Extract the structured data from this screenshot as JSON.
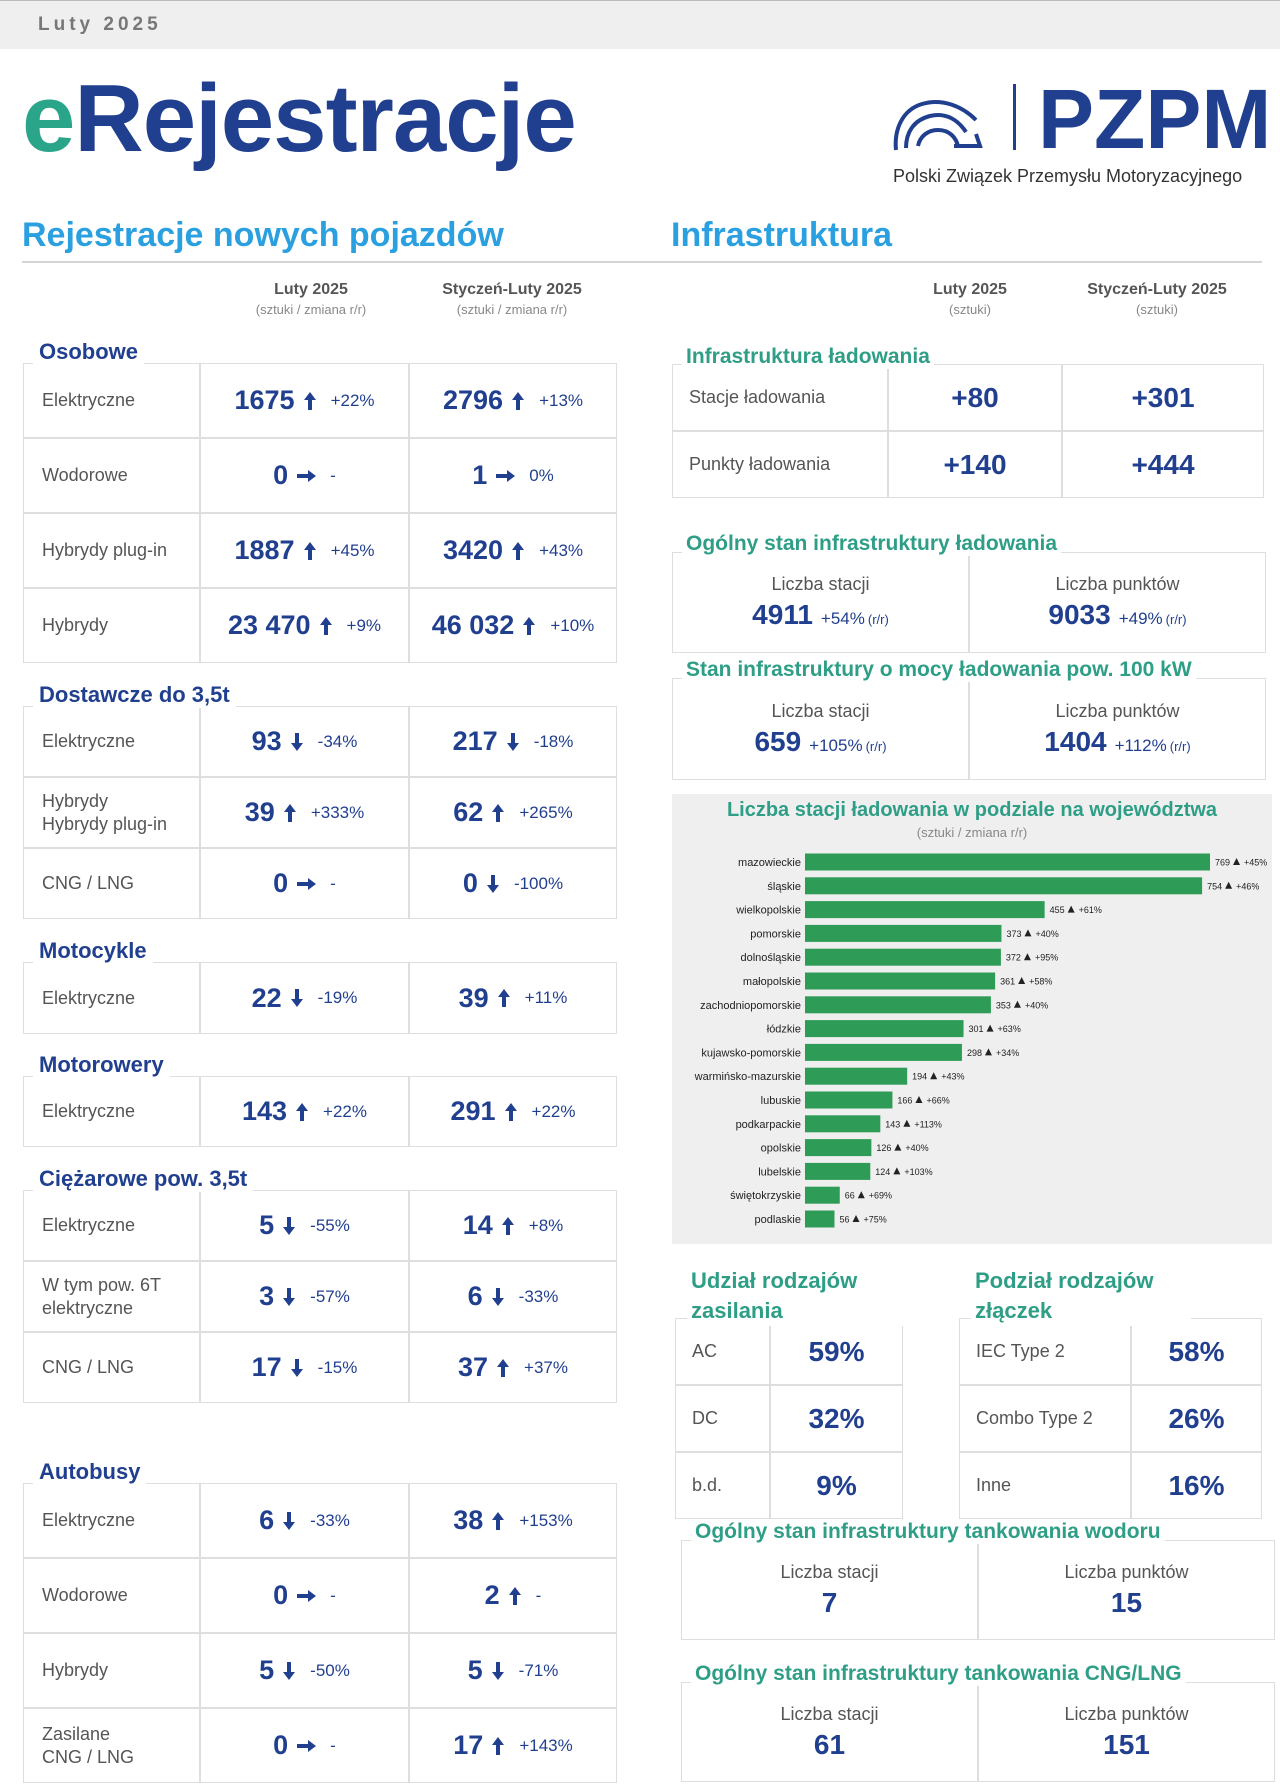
{
  "header": {
    "date": "Luty 2025",
    "title_e": "e",
    "title_rest": "Rejestracje",
    "logo_name": "PZPM",
    "logo_subtitle": "Polski Związek Przemysłu Motoryzacyjnego"
  },
  "registrations": {
    "title": "Rejestracje nowych pojazdów",
    "columns": [
      {
        "name": "Luty 2025",
        "unit": "(sztuki / zmiana r/r)"
      },
      {
        "name": "Styczeń-Luty 2025",
        "unit": "(sztuki / zmiana r/r)"
      }
    ],
    "groups": [
      {
        "name": "Osobowe",
        "rows": [
          {
            "label": [
              "Elektryczne"
            ],
            "cells": [
              {
                "value": "1675",
                "trend": "up",
                "change": "+22%"
              },
              {
                "value": "2796",
                "trend": "up",
                "change": "+13%"
              }
            ]
          },
          {
            "label": [
              "Wodorowe"
            ],
            "cells": [
              {
                "value": "0",
                "trend": "flat",
                "change": "-"
              },
              {
                "value": "1",
                "trend": "flat",
                "change": "0%"
              }
            ]
          },
          {
            "label": [
              "Hybrydy plug-in"
            ],
            "cells": [
              {
                "value": "1887",
                "trend": "up",
                "change": "+45%"
              },
              {
                "value": "3420",
                "trend": "up",
                "change": "+43%"
              }
            ]
          },
          {
            "label": [
              "Hybrydy"
            ],
            "cells": [
              {
                "value": "23 470",
                "trend": "up",
                "change": "+9%"
              },
              {
                "value": "46 032",
                "trend": "up",
                "change": "+10%"
              }
            ]
          }
        ]
      },
      {
        "name": "Dostawcze do 3,5t",
        "rows": [
          {
            "label": [
              "Elektryczne"
            ],
            "cells": [
              {
                "value": "93",
                "trend": "down",
                "change": "-34%"
              },
              {
                "value": "217",
                "trend": "down",
                "change": "-18%"
              }
            ]
          },
          {
            "label": [
              "Hybrydy",
              "Hybrydy plug-in"
            ],
            "cells": [
              {
                "value": "39",
                "trend": "up",
                "change": "+333%"
              },
              {
                "value": "62",
                "trend": "up",
                "change": "+265%"
              }
            ]
          },
          {
            "label": [
              "CNG / LNG"
            ],
            "cells": [
              {
                "value": "0",
                "trend": "flat",
                "change": "-"
              },
              {
                "value": "0",
                "trend": "down",
                "change": "-100%"
              }
            ]
          }
        ]
      },
      {
        "name": "Motocykle",
        "rows": [
          {
            "label": [
              "Elektryczne"
            ],
            "cells": [
              {
                "value": "22",
                "trend": "down",
                "change": "-19%"
              },
              {
                "value": "39",
                "trend": "up",
                "change": "+11%"
              }
            ]
          }
        ]
      },
      {
        "name": "Motorowery",
        "rows": [
          {
            "label": [
              "Elektryczne"
            ],
            "cells": [
              {
                "value": "143",
                "trend": "up",
                "change": "+22%"
              },
              {
                "value": "291",
                "trend": "up",
                "change": "+22%"
              }
            ]
          }
        ]
      },
      {
        "name": "Ciężarowe pow. 3,5t",
        "rows": [
          {
            "label": [
              "Elektryczne"
            ],
            "cells": [
              {
                "value": "5",
                "trend": "down",
                "change": "-55%"
              },
              {
                "value": "14",
                "trend": "up",
                "change": "+8%"
              }
            ]
          },
          {
            "label": [
              "W tym pow. 6T",
              "elektryczne"
            ],
            "cells": [
              {
                "value": "3",
                "trend": "down",
                "change": "-57%"
              },
              {
                "value": "6",
                "trend": "down",
                "change": "-33%"
              }
            ]
          },
          {
            "label": [
              "CNG / LNG"
            ],
            "cells": [
              {
                "value": "17",
                "trend": "down",
                "change": "-15%"
              },
              {
                "value": "37",
                "trend": "up",
                "change": "+37%"
              }
            ]
          }
        ]
      },
      {
        "name": "Autobusy",
        "rows": [
          {
            "label": [
              "Elektryczne"
            ],
            "cells": [
              {
                "value": "6",
                "trend": "down",
                "change": "-33%"
              },
              {
                "value": "38",
                "trend": "up",
                "change": "+153%"
              }
            ]
          },
          {
            "label": [
              "Wodorowe"
            ],
            "cells": [
              {
                "value": "0",
                "trend": "flat",
                "change": "-"
              },
              {
                "value": "2",
                "trend": "up",
                "change": "-"
              }
            ]
          },
          {
            "label": [
              "Hybrydy"
            ],
            "cells": [
              {
                "value": "5",
                "trend": "down",
                "change": "-50%"
              },
              {
                "value": "5",
                "trend": "down",
                "change": "-71%"
              }
            ]
          },
          {
            "label": [
              "Zasilane",
              "CNG / LNG"
            ],
            "cells": [
              {
                "value": "0",
                "trend": "flat",
                "change": "-"
              },
              {
                "value": "17",
                "trend": "up",
                "change": "+143%"
              }
            ]
          }
        ]
      }
    ]
  },
  "infrastructure": {
    "title": "Infrastruktura",
    "columns": [
      {
        "name": "Luty 2025",
        "unit": "(sztuki)"
      },
      {
        "name": "Styczeń-Luty 2025",
        "unit": "(sztuki)"
      }
    ],
    "charging": {
      "title": "Infrastruktura  ładowania",
      "rows": [
        {
          "label": "Stacje ładowania",
          "values": [
            "+80",
            "+301"
          ]
        },
        {
          "label": "Punkty ładowania",
          "values": [
            "+140",
            "+444"
          ]
        }
      ]
    },
    "charging_total": {
      "title": "Ogólny stan infrastruktury ładowania",
      "cells": [
        {
          "label": "Liczba stacji",
          "value": "4911",
          "change": "+54%",
          "note": "(r/r)"
        },
        {
          "label": "Liczba punktów",
          "value": "9033",
          "change": "+49%",
          "note": "(r/r)"
        }
      ]
    },
    "charging_100kw": {
      "title": "Stan infrastruktury o mocy ładowania pow. 100 kW",
      "cells": [
        {
          "label": "Liczba stacji",
          "value": "659",
          "change": "+105%",
          "note": "(r/r)"
        },
        {
          "label": "Liczba punktów",
          "value": "1404",
          "change": "+112%",
          "note": "(r/r)"
        }
      ]
    },
    "power_share": {
      "title": "Udział rodzajów zasilania",
      "rows": [
        {
          "label": "AC",
          "value": "59%"
        },
        {
          "label": "DC",
          "value": "32%"
        },
        {
          "label": "b.d.",
          "value": "9%"
        }
      ]
    },
    "connectors": {
      "title": "Podział rodzajów złączek",
      "rows": [
        {
          "label": "IEC Type 2",
          "value": "58%"
        },
        {
          "label": "Combo Type 2",
          "value": "26%"
        },
        {
          "label": "Inne",
          "value": "16%"
        }
      ]
    },
    "hydrogen": {
      "title": "Ogólny stan infrastruktury tankowania wodoru",
      "cells": [
        {
          "label": "Liczba stacji",
          "value": "7"
        },
        {
          "label": "Liczba punktów",
          "value": "15"
        }
      ]
    },
    "cng": {
      "title": "Ogólny stan infrastruktury tankowania CNG/LNG",
      "cells": [
        {
          "label": "Liczba stacji",
          "value": "61"
        },
        {
          "label": "Liczba punktów",
          "value": "151"
        }
      ]
    }
  },
  "chart_data": {
    "type": "bar",
    "orientation": "horizontal",
    "title": "Liczba stacji ładowania w podziale na województwa",
    "subtitle": "(sztuki / zmiana r/r)",
    "categories": [
      "mazowieckie",
      "śląskie",
      "wielkopolskie",
      "pomorskie",
      "dolnośląskie",
      "małopolskie",
      "zachodniopomorskie",
      "łódzkie",
      "kujawsko-pomorskie",
      "warmińsko-mazurskie",
      "lubuskie",
      "podkarpackie",
      "opolskie",
      "lubelskie",
      "świętokrzyskie",
      "podlaskie"
    ],
    "values": [
      769,
      754,
      455,
      373,
      372,
      361,
      353,
      301,
      298,
      194,
      166,
      143,
      126,
      124,
      66,
      56
    ],
    "changes": [
      "+45%",
      "+46%",
      "+61%",
      "+40%",
      "+95%",
      "+58%",
      "+40%",
      "+63%",
      "+34%",
      "+43%",
      "+66%",
      "+113%",
      "+40%",
      "+103%",
      "+69%",
      "+75%"
    ],
    "color": "#2e9b57"
  }
}
